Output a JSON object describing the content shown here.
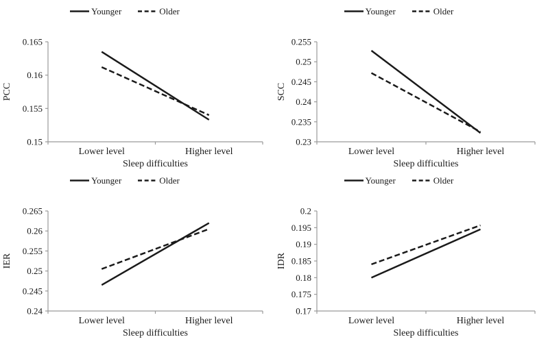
{
  "figure": {
    "background": "#ffffff",
    "text_color": "#1a1a1a",
    "line_color": "#1a1a1a",
    "axis_color": "#999999"
  },
  "legend": {
    "younger_label": "Younger",
    "older_label": "Older"
  },
  "chart_data": [
    {
      "type": "line",
      "ylabel": "PCC",
      "xlabel": "Sleep difficulties",
      "categories": [
        "Lower level",
        "Higher level"
      ],
      "series": [
        {
          "name": "Younger",
          "dash": "solid",
          "values": [
            0.1635,
            0.1533
          ]
        },
        {
          "name": "Older",
          "dash": "dashed",
          "values": [
            0.1612,
            0.154
          ]
        }
      ],
      "ylim": [
        0.15,
        0.165
      ],
      "yticks": [
        "0.15",
        "0.155",
        "0.16",
        "0.165"
      ],
      "grid": false,
      "legend_position": "top-center"
    },
    {
      "type": "line",
      "ylabel": "SCC",
      "xlabel": "Sleep difficulties",
      "categories": [
        "Lower level",
        "Higher level"
      ],
      "series": [
        {
          "name": "Younger",
          "dash": "solid",
          "values": [
            0.2528,
            0.2322
          ]
        },
        {
          "name": "Older",
          "dash": "dashed",
          "values": [
            0.2472,
            0.2325
          ]
        }
      ],
      "ylim": [
        0.23,
        0.255
      ],
      "yticks": [
        "0.23",
        "0.235",
        "0.24",
        "0.245",
        "0.25",
        "0.255"
      ],
      "grid": false,
      "legend_position": "top-center"
    },
    {
      "type": "line",
      "ylabel": "IER",
      "xlabel": "Sleep difficulties",
      "categories": [
        "Lower level",
        "Higher level"
      ],
      "series": [
        {
          "name": "Younger",
          "dash": "solid",
          "values": [
            0.2465,
            0.262
          ]
        },
        {
          "name": "Older",
          "dash": "dashed",
          "values": [
            0.2505,
            0.2605
          ]
        }
      ],
      "ylim": [
        0.24,
        0.265
      ],
      "yticks": [
        "0.24",
        "0.245",
        "0.25",
        "0.255",
        "0.26",
        "0.265"
      ],
      "grid": false,
      "legend_position": "top-center"
    },
    {
      "type": "line",
      "ylabel": "IDR",
      "xlabel": "Sleep difficulties",
      "categories": [
        "Lower level",
        "Higher level"
      ],
      "series": [
        {
          "name": "Younger",
          "dash": "solid",
          "values": [
            0.18,
            0.1945
          ]
        },
        {
          "name": "Older",
          "dash": "dashed",
          "values": [
            0.184,
            0.1957
          ]
        }
      ],
      "ylim": [
        0.17,
        0.2
      ],
      "yticks": [
        "0.17",
        "0.175",
        "0.18",
        "0.185",
        "0.19",
        "0.195",
        "0.2"
      ],
      "grid": false,
      "legend_position": "top-center"
    }
  ]
}
